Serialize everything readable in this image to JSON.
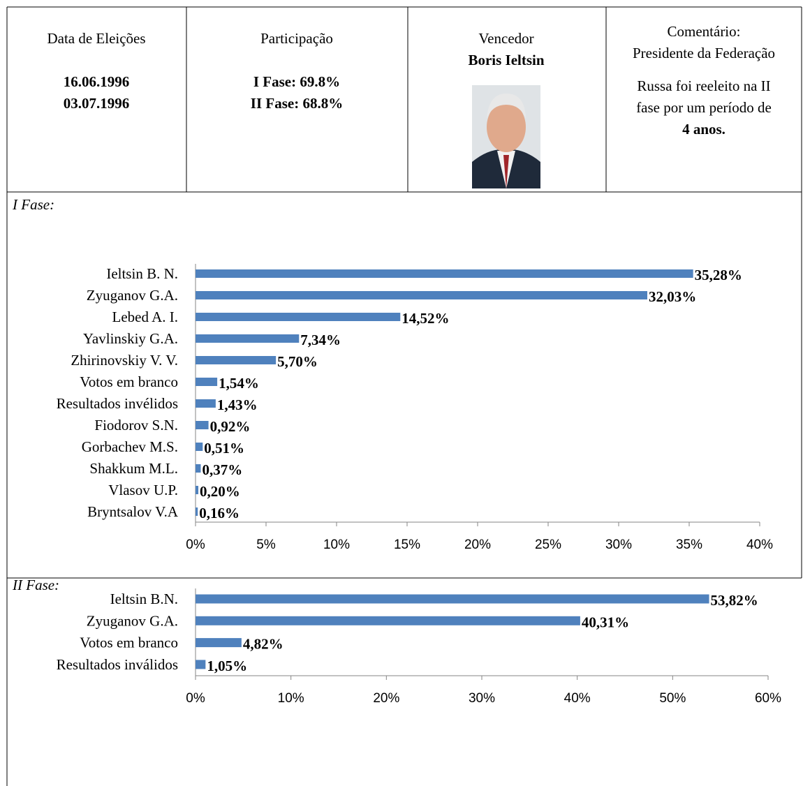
{
  "table": {
    "columns": [
      {
        "heading": "Data de Eleições",
        "lines": [
          "16.06.1996",
          "03.07.1996"
        ]
      },
      {
        "heading": "Participação",
        "lines": [
          "I Fase: 69.8%",
          "II Fase: 68.8%"
        ]
      },
      {
        "heading": "Vencedor",
        "lines": [
          "Boris Ieltsin"
        ]
      },
      {
        "heading": "Comentário:",
        "lines": [
          "Presidente da Federação",
          "Russa foi reeleito na II",
          "fase por um período de",
          "4 anos."
        ]
      }
    ]
  },
  "chart_data": [
    {
      "type": "bar",
      "orientation": "horizontal",
      "title": "I Fase:",
      "color": "#4f81bd",
      "categories": [
        "Ieltsin B. N.",
        "Zyuganov G.A.",
        "Lebed A. I.",
        "Yavlinskiy G.A.",
        "Zhirinovskiy V. V.",
        "Votos em branco",
        "Resultados invélidos",
        "Fiodorov S.N.",
        "Gorbachev M.S.",
        "Shakkum M.L.",
        "Vlasov U.P.",
        "Bryntsalov V.A"
      ],
      "values": [
        35.28,
        32.03,
        14.52,
        7.34,
        5.7,
        1.54,
        1.43,
        0.92,
        0.51,
        0.37,
        0.2,
        0.16
      ],
      "value_labels": [
        "35,28%",
        "32,03%",
        "14,52%",
        "7,34%",
        "5,70%",
        "1,54%",
        "1,43%",
        "0,92%",
        "0,51%",
        "0,37%",
        "0,20%",
        "0,16%"
      ],
      "xlim": [
        0,
        40
      ],
      "xticks": [
        {
          "value": 0,
          "label": "0%"
        },
        {
          "value": 5,
          "label": "5%"
        },
        {
          "value": 10,
          "label": "10%"
        },
        {
          "value": 15,
          "label": "15%"
        },
        {
          "value": 20,
          "label": "20%"
        },
        {
          "value": 25,
          "label": "25%"
        },
        {
          "value": 30,
          "label": "30%"
        },
        {
          "value": 35,
          "label": "35%"
        },
        {
          "value": 40,
          "label": "40%"
        }
      ]
    },
    {
      "type": "bar",
      "orientation": "horizontal",
      "title": "II Fase:",
      "color": "#4f81bd",
      "categories": [
        "Ieltsin B.N.",
        "Zyuganov G.A.",
        "Votos em branco",
        "Resultados inválidos"
      ],
      "values": [
        53.82,
        40.31,
        4.82,
        1.05
      ],
      "value_labels": [
        "53,82%",
        "40,31%",
        "4,82%",
        "1,05%"
      ],
      "xlim": [
        0,
        60
      ],
      "xticks": [
        {
          "value": 0,
          "label": "0%"
        },
        {
          "value": 10,
          "label": "10%"
        },
        {
          "value": 20,
          "label": "20%"
        },
        {
          "value": 30,
          "label": "30%"
        },
        {
          "value": 40,
          "label": "40%"
        },
        {
          "value": 50,
          "label": "50%"
        },
        {
          "value": 60,
          "label": "60%"
        }
      ]
    }
  ]
}
